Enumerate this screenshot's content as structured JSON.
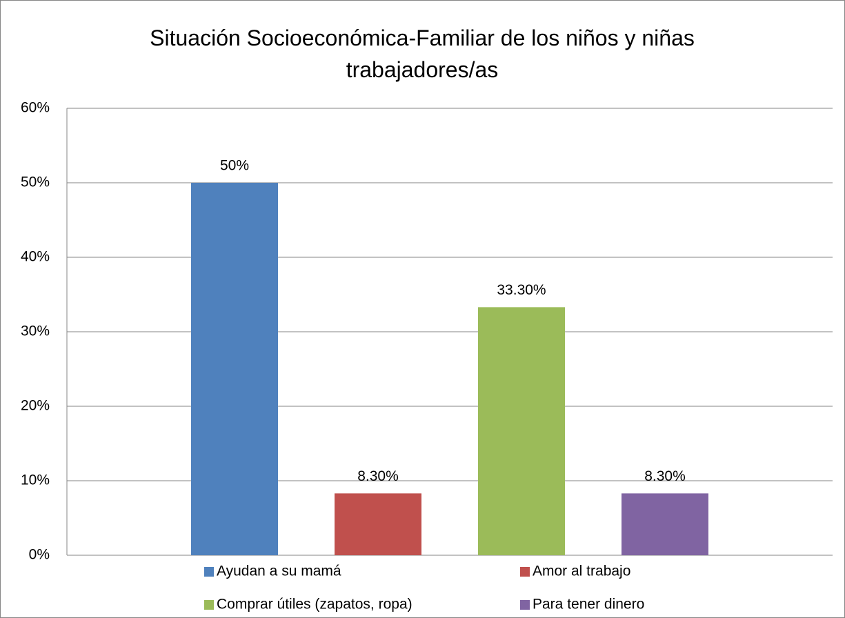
{
  "chart_data": {
    "type": "bar",
    "title": "Situación Socioeconómica-Familiar de los niños y niñas trabajadores/as",
    "categories": [
      null
    ],
    "series": [
      {
        "name": "Ayudan a su mamá",
        "color": "#4f81bd",
        "values": [
          50
        ],
        "value_labels": [
          "50%"
        ]
      },
      {
        "name": "Amor al trabajo",
        "color": "#c0504d",
        "values": [
          8.3
        ],
        "value_labels": [
          "8.30%"
        ]
      },
      {
        "name": "Comprar útiles (zapatos, ropa)",
        "color": "#9bbb59",
        "values": [
          33.3
        ],
        "value_labels": [
          "33.30%"
        ]
      },
      {
        "name": "Para tener dinero",
        "color": "#8064a2",
        "values": [
          8.3
        ],
        "value_labels": [
          "8.30%"
        ]
      }
    ],
    "ylim": [
      0,
      60
    ],
    "yticks": [
      {
        "value": 0,
        "label": "0%"
      },
      {
        "value": 10,
        "label": "10%"
      },
      {
        "value": 20,
        "label": "20%"
      },
      {
        "value": 30,
        "label": "30%"
      },
      {
        "value": 40,
        "label": "40%"
      },
      {
        "value": 50,
        "label": "50%"
      },
      {
        "value": 60,
        "label": "60%"
      }
    ],
    "grid": true,
    "legend": "bottom"
  }
}
